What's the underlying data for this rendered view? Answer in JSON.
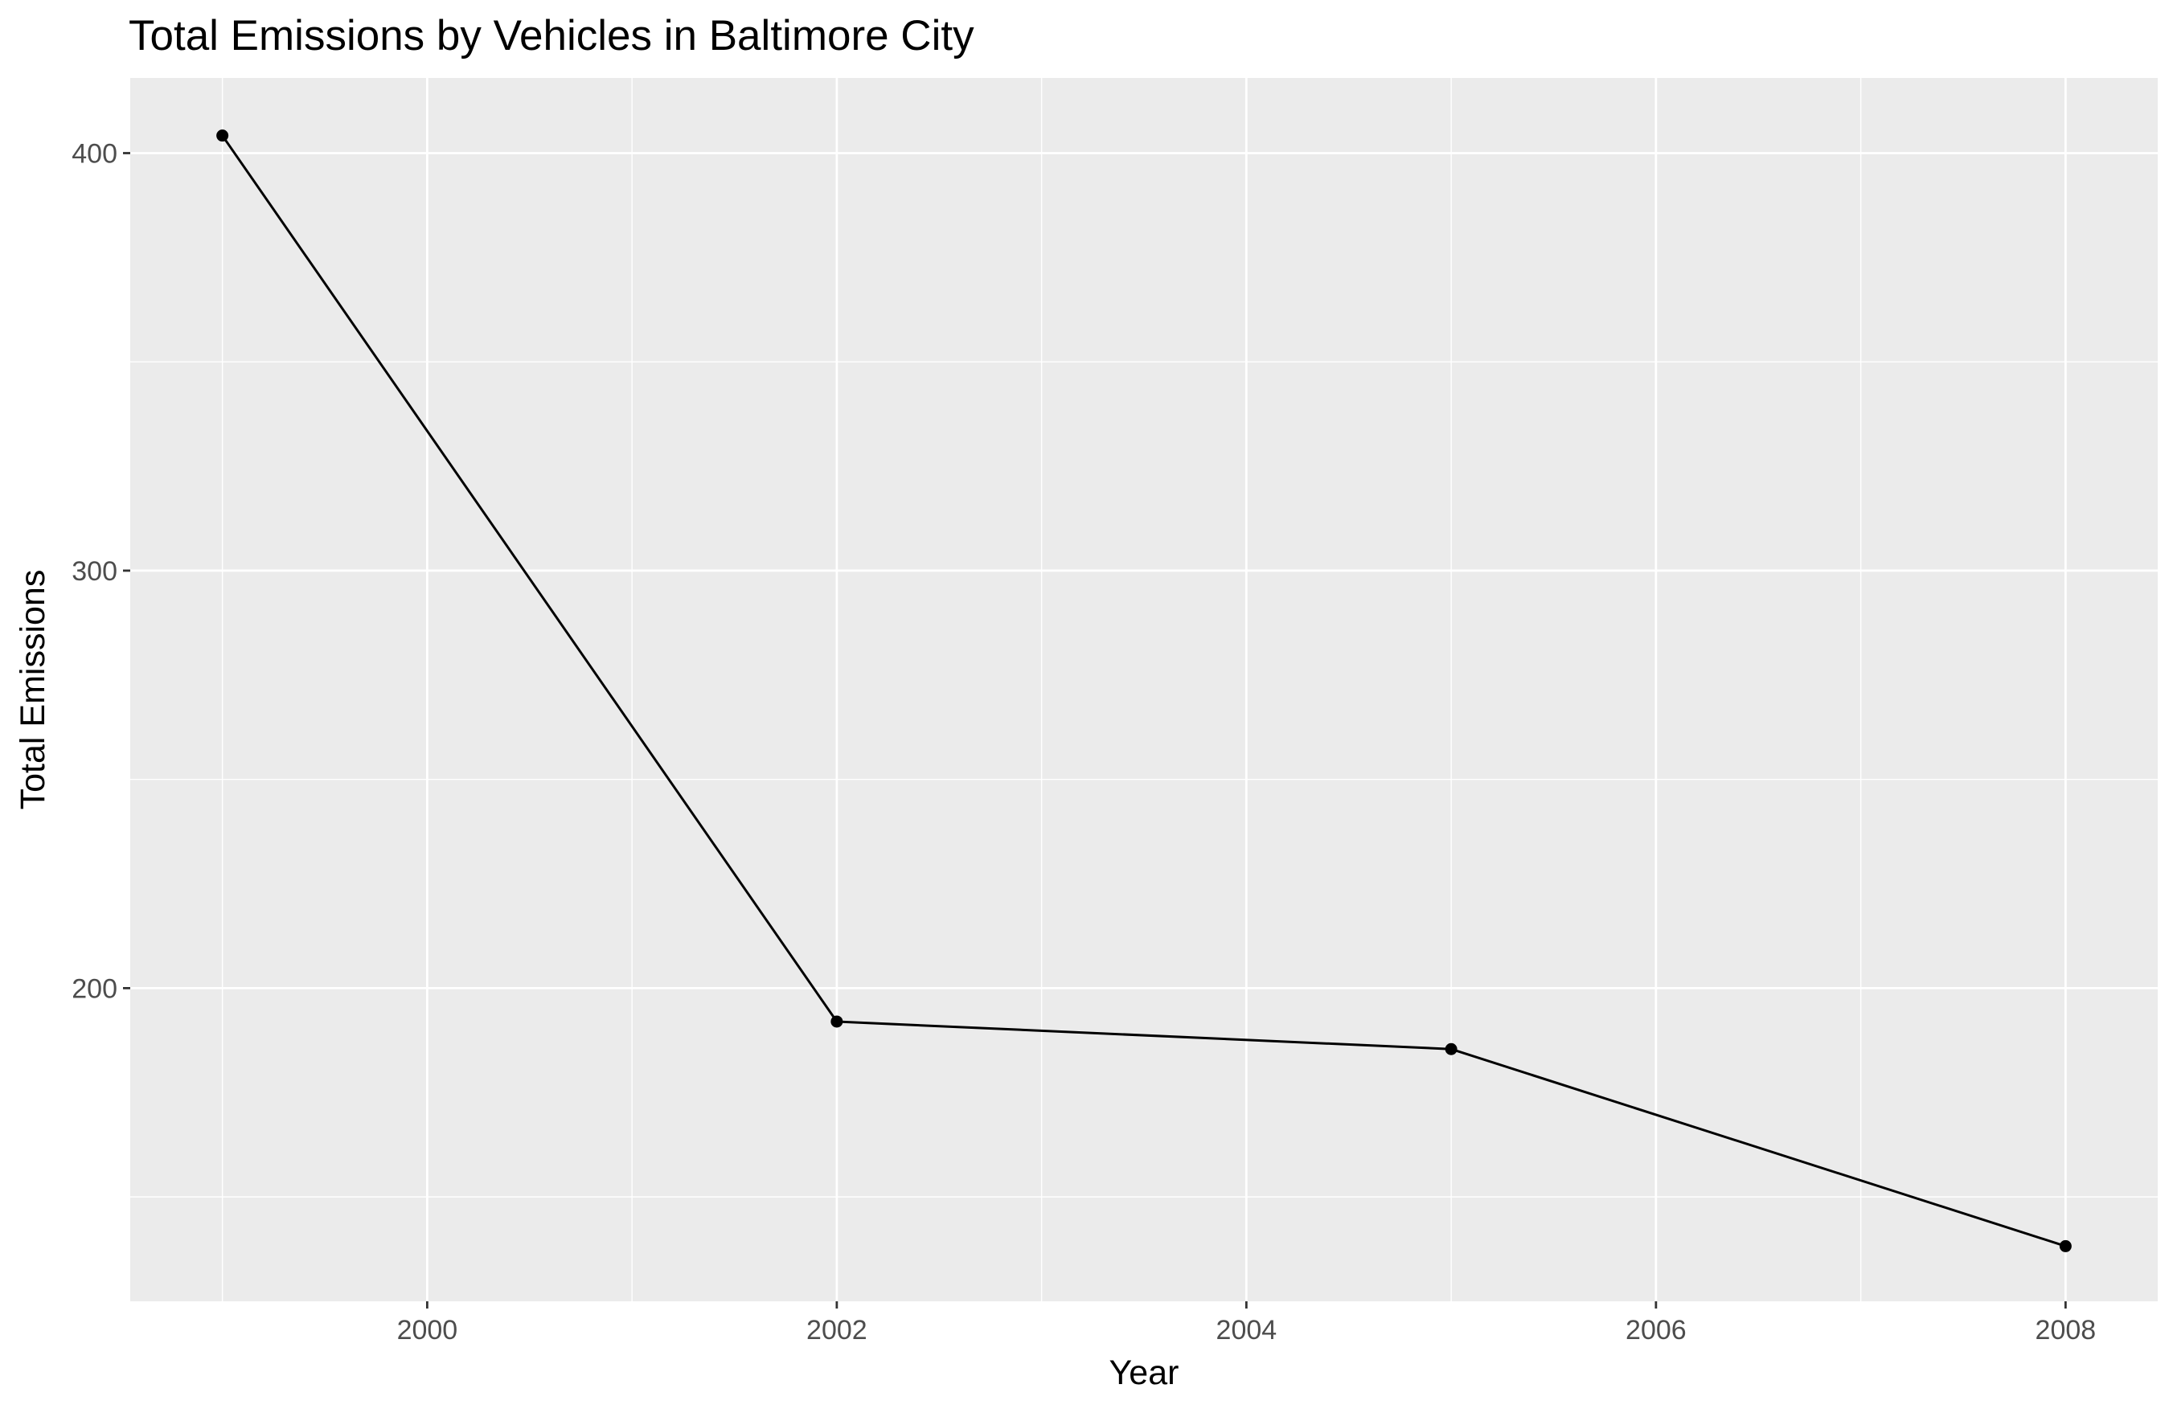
{
  "chart_data": {
    "type": "line",
    "title": "Total Emissions by Vehicles in Baltimore City",
    "xlabel": "Year",
    "ylabel": "Total Emissions",
    "x": [
      1999,
      2002,
      2005,
      2008
    ],
    "series": [
      {
        "values": [
          404.2,
          192.0,
          185.4,
          138.2
        ]
      }
    ],
    "xlim": [
      1998.55,
      2008.45
    ],
    "ylim": [
      125,
      418
    ],
    "x_ticks": [
      "2000",
      "2002",
      "2004",
      "2006",
      "2008"
    ],
    "y_ticks": [
      "200",
      "300",
      "400"
    ],
    "x_tick_values": [
      2000,
      2002,
      2004,
      2006,
      2008
    ],
    "y_tick_values": [
      200,
      300,
      400
    ],
    "grid": true,
    "legend": "none",
    "colors": {
      "panel_background": "#EBEBEB",
      "grid": "#FFFFFF",
      "line": "#000000",
      "point": "#000000",
      "tick_label": "#4D4D4D",
      "tick_mark": "#333333"
    }
  }
}
